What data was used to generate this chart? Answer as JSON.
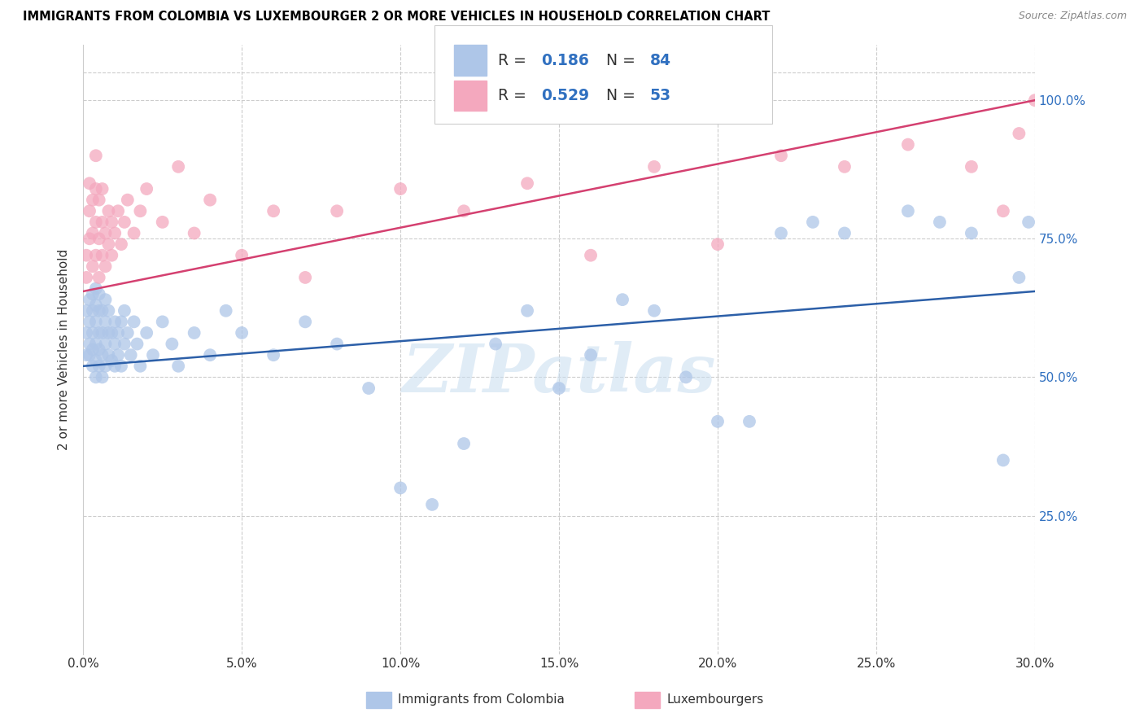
{
  "title": "IMMIGRANTS FROM COLOMBIA VS LUXEMBOURGER 2 OR MORE VEHICLES IN HOUSEHOLD CORRELATION CHART",
  "source": "Source: ZipAtlas.com",
  "ylabel": "2 or more Vehicles in Household",
  "xlim": [
    0.0,
    0.3
  ],
  "ylim": [
    0.0,
    1.1
  ],
  "xtick_labels": [
    "0.0%",
    "5.0%",
    "10.0%",
    "15.0%",
    "20.0%",
    "25.0%",
    "30.0%"
  ],
  "xtick_vals": [
    0.0,
    0.05,
    0.1,
    0.15,
    0.2,
    0.25,
    0.3
  ],
  "ytick_labels": [
    "25.0%",
    "50.0%",
    "75.0%",
    "100.0%"
  ],
  "ytick_vals": [
    0.25,
    0.5,
    0.75,
    1.0
  ],
  "blue_color": "#aec6e8",
  "pink_color": "#f4a8be",
  "blue_line_color": "#2c5fa8",
  "pink_line_color": "#d44070",
  "blue_label_color": "#3070c0",
  "watermark": "ZIPatlas",
  "colombia_x": [
    0.001,
    0.001,
    0.001,
    0.002,
    0.002,
    0.002,
    0.002,
    0.003,
    0.003,
    0.003,
    0.003,
    0.003,
    0.004,
    0.004,
    0.004,
    0.004,
    0.004,
    0.004,
    0.005,
    0.005,
    0.005,
    0.005,
    0.005,
    0.006,
    0.006,
    0.006,
    0.006,
    0.007,
    0.007,
    0.007,
    0.007,
    0.008,
    0.008,
    0.008,
    0.009,
    0.009,
    0.01,
    0.01,
    0.01,
    0.011,
    0.011,
    0.012,
    0.012,
    0.013,
    0.013,
    0.014,
    0.015,
    0.016,
    0.017,
    0.018,
    0.02,
    0.022,
    0.025,
    0.028,
    0.03,
    0.035,
    0.04,
    0.045,
    0.05,
    0.06,
    0.07,
    0.08,
    0.09,
    0.1,
    0.11,
    0.12,
    0.13,
    0.14,
    0.15,
    0.16,
    0.17,
    0.18,
    0.19,
    0.2,
    0.21,
    0.22,
    0.23,
    0.24,
    0.26,
    0.27,
    0.28,
    0.29,
    0.295,
    0.298
  ],
  "colombia_y": [
    0.54,
    0.58,
    0.62,
    0.54,
    0.56,
    0.6,
    0.64,
    0.52,
    0.55,
    0.58,
    0.62,
    0.65,
    0.5,
    0.53,
    0.56,
    0.6,
    0.63,
    0.66,
    0.52,
    0.55,
    0.58,
    0.62,
    0.65,
    0.5,
    0.54,
    0.58,
    0.62,
    0.52,
    0.56,
    0.6,
    0.64,
    0.54,
    0.58,
    0.62,
    0.53,
    0.58,
    0.52,
    0.56,
    0.6,
    0.54,
    0.58,
    0.52,
    0.6,
    0.56,
    0.62,
    0.58,
    0.54,
    0.6,
    0.56,
    0.52,
    0.58,
    0.54,
    0.6,
    0.56,
    0.52,
    0.58,
    0.54,
    0.62,
    0.58,
    0.54,
    0.6,
    0.56,
    0.48,
    0.3,
    0.27,
    0.38,
    0.56,
    0.62,
    0.48,
    0.54,
    0.64,
    0.62,
    0.5,
    0.42,
    0.42,
    0.76,
    0.78,
    0.76,
    0.8,
    0.78,
    0.76,
    0.35,
    0.68,
    0.78
  ],
  "luxembourger_x": [
    0.001,
    0.001,
    0.002,
    0.002,
    0.002,
    0.003,
    0.003,
    0.003,
    0.004,
    0.004,
    0.004,
    0.004,
    0.005,
    0.005,
    0.005,
    0.006,
    0.006,
    0.006,
    0.007,
    0.007,
    0.008,
    0.008,
    0.009,
    0.009,
    0.01,
    0.011,
    0.012,
    0.013,
    0.014,
    0.016,
    0.018,
    0.02,
    0.025,
    0.03,
    0.035,
    0.04,
    0.05,
    0.06,
    0.07,
    0.08,
    0.1,
    0.12,
    0.14,
    0.16,
    0.18,
    0.2,
    0.22,
    0.24,
    0.26,
    0.28,
    0.29,
    0.295,
    0.3
  ],
  "luxembourger_y": [
    0.68,
    0.72,
    0.75,
    0.8,
    0.85,
    0.7,
    0.76,
    0.82,
    0.72,
    0.78,
    0.84,
    0.9,
    0.68,
    0.75,
    0.82,
    0.72,
    0.78,
    0.84,
    0.7,
    0.76,
    0.74,
    0.8,
    0.72,
    0.78,
    0.76,
    0.8,
    0.74,
    0.78,
    0.82,
    0.76,
    0.8,
    0.84,
    0.78,
    0.88,
    0.76,
    0.82,
    0.72,
    0.8,
    0.68,
    0.8,
    0.84,
    0.8,
    0.85,
    0.72,
    0.88,
    0.74,
    0.9,
    0.88,
    0.92,
    0.88,
    0.8,
    0.94,
    1.0
  ],
  "blue_line_x0": 0.0,
  "blue_line_x1": 0.3,
  "blue_line_y0": 0.52,
  "blue_line_y1": 0.655,
  "pink_line_x0": 0.0,
  "pink_line_x1": 0.3,
  "pink_line_y0": 0.655,
  "pink_line_y1": 1.0
}
